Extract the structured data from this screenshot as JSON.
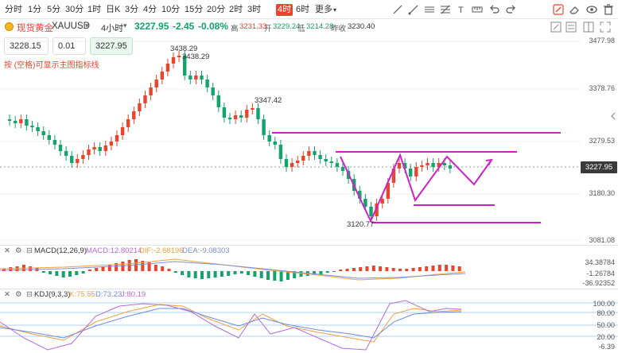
{
  "toolbar": {
    "timeframes": [
      "分时",
      "1分",
      "5分",
      "30分",
      "1时",
      "日K",
      "3分",
      "4分",
      "10分",
      "15分",
      "20分",
      "2时",
      "3时",
      "4时",
      "6时",
      "更多"
    ],
    "active_timeframe": "4时",
    "more_label": "更多",
    "icons": [
      "line-tool-icon",
      "ray-tool-icon",
      "parallel-channel-icon",
      "fib-retracement-icon",
      "text-tool-icon",
      "measure-icon",
      "undo-icon",
      "draw-mode-icon",
      "erase-icon",
      "visibility-icon",
      "delete-icon"
    ]
  },
  "symbol": {
    "market": "现货黄金",
    "code": "XAUUSD",
    "period": "4小时",
    "price": "3227.95",
    "change": "-2.45",
    "change_pct": "-0.08%",
    "high_label": "高",
    "high": "3231.33",
    "open_label": "开",
    "open": "3229.24",
    "low_label": "低",
    "low": "3214.28",
    "prev_close_label": "昨收",
    "prev_close": "3230.40"
  },
  "quote": {
    "sell": "3228.15",
    "lot": "0.01",
    "buy": "3227.95"
  },
  "hint": "按 (空格)可显示主图指标线",
  "price_axis": {
    "labels": [
      "3477.98",
      "3378.76",
      "3279.53",
      "3180.30",
      "3081.08"
    ],
    "current": "3227.95"
  },
  "annotations": {
    "high_1": "3438.29",
    "high_2": "3438.29",
    "high_3": "3347.42",
    "low_1": "3120.77"
  },
  "macd": {
    "label": "MACD(12,26,9)",
    "macd": "MACD:12.80214",
    "dif": "DIF:-2.68196",
    "dea": "DEA:-9.08303",
    "axis": [
      "34.38784",
      "-1.26784",
      "-36.92352"
    ]
  },
  "kdj": {
    "label": "KDJ(9,3,3)",
    "k": "K:75.55",
    "d": "D:73.23",
    "j": "J:80.19",
    "axis": [
      "100.00",
      "80.00",
      "50.00",
      "20.00",
      "-6.39"
    ]
  },
  "colors": {
    "up": "#e8452c",
    "down": "#13a36b",
    "drawing": "#cc22cc",
    "dif": "#f0a040",
    "dea": "#7f8fd6",
    "k": "#f0a040",
    "d": "#6a8be0",
    "j": "#b36cd9"
  }
}
